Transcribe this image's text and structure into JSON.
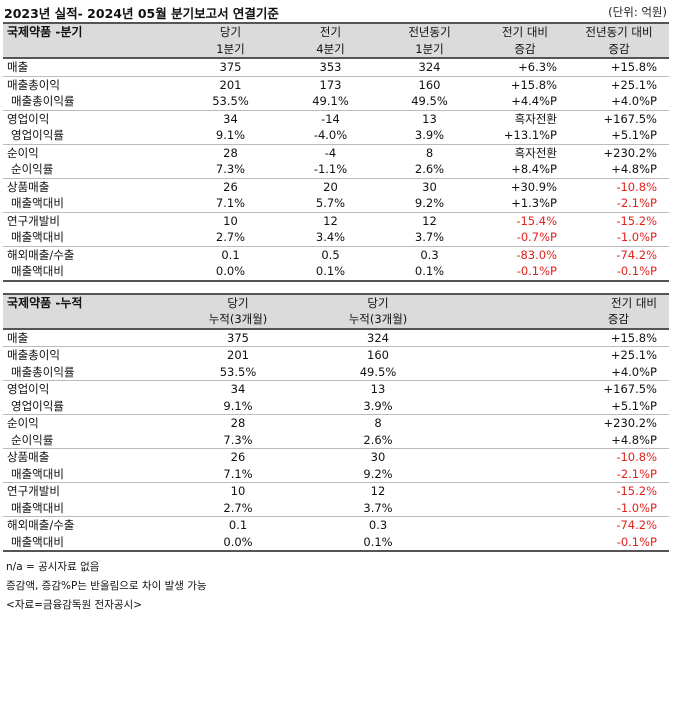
{
  "header": {
    "title": "2023년 실적- 2024년 05월 분기보고서 연결기준",
    "unit": "(단위: 억원)"
  },
  "quarter_table": {
    "label": "국제약품 -분기",
    "col_headers": [
      [
        "당기",
        "1분기"
      ],
      [
        "전기",
        "4분기"
      ],
      [
        "전년동기",
        "1분기"
      ],
      [
        "전기 대비",
        "증감"
      ],
      [
        "전년동기 대비",
        "증감"
      ]
    ],
    "rows": [
      {
        "label": "매출",
        "cells": [
          "375",
          "353",
          "324",
          "+6.3%",
          "+15.8%"
        ]
      },
      {
        "label": "매출총이익",
        "cells": [
          "201",
          "173",
          "160",
          "+15.8%",
          "+25.1%"
        ]
      },
      {
        "label": "매출총이익률",
        "cells": [
          "53.5%",
          "49.1%",
          "49.5%",
          "+4.4%P",
          "+4.0%P"
        ]
      },
      {
        "label": "영업이익",
        "cells": [
          "34",
          "-14",
          "13",
          "흑자전환",
          "+167.5%"
        ]
      },
      {
        "label": "영업이익률",
        "cells": [
          "9.1%",
          "-4.0%",
          "3.9%",
          "+13.1%P",
          "+5.1%P"
        ]
      },
      {
        "label": "순이익",
        "cells": [
          "28",
          "-4",
          "8",
          "흑자전환",
          "+230.2%"
        ]
      },
      {
        "label": "순이익률",
        "cells": [
          "7.3%",
          "-1.1%",
          "2.6%",
          "+8.4%P",
          "+4.8%P"
        ]
      },
      {
        "label": "상품매출",
        "cells": [
          "26",
          "20",
          "30",
          "+30.9%",
          "-10.8%"
        ]
      },
      {
        "label": "매출액대비",
        "cells": [
          "7.1%",
          "5.7%",
          "9.2%",
          "+1.3%P",
          "-2.1%P"
        ]
      },
      {
        "label": "연구개발비",
        "cells": [
          "10",
          "12",
          "12",
          "-15.4%",
          "-15.2%"
        ]
      },
      {
        "label": "매출액대비",
        "cells": [
          "2.7%",
          "3.4%",
          "3.7%",
          "-0.7%P",
          "-1.0%P"
        ]
      },
      {
        "label": "해외매출/수출",
        "cells": [
          "0.1",
          "0.5",
          "0.3",
          "-83.0%",
          "-74.2%"
        ]
      },
      {
        "label": "매출액대비",
        "cells": [
          "0.0%",
          "0.1%",
          "0.1%",
          "-0.1%P",
          "-0.1%P"
        ]
      }
    ]
  },
  "cumulative_table": {
    "label": "국제약품 -누적",
    "col_headers": [
      [
        "당기",
        "누적(3개월)"
      ],
      [
        "당기",
        "누적(3개월)"
      ],
      [
        "전기 대비",
        "증감"
      ]
    ],
    "rows": [
      {
        "label": "매출",
        "cells": [
          "375",
          "324",
          "+15.8%"
        ]
      },
      {
        "label": "매출총이익",
        "cells": [
          "201",
          "160",
          "+25.1%"
        ]
      },
      {
        "label": "매출총이익률",
        "cells": [
          "53.5%",
          "49.5%",
          "+4.0%P"
        ]
      },
      {
        "label": "영업이익",
        "cells": [
          "34",
          "13",
          "+167.5%"
        ]
      },
      {
        "label": "영업이익률",
        "cells": [
          "9.1%",
          "3.9%",
          "+5.1%P"
        ]
      },
      {
        "label": "순이익",
        "cells": [
          "28",
          "8",
          "+230.2%"
        ]
      },
      {
        "label": "순이익률",
        "cells": [
          "7.3%",
          "2.6%",
          "+4.8%P"
        ]
      },
      {
        "label": "상품매출",
        "cells": [
          "26",
          "30",
          "-10.8%"
        ]
      },
      {
        "label": "매출액대비",
        "cells": [
          "7.1%",
          "9.2%",
          "-2.1%P"
        ]
      },
      {
        "label": "연구개발비",
        "cells": [
          "10",
          "12",
          "-15.2%"
        ]
      },
      {
        "label": "매출액대비",
        "cells": [
          "2.7%",
          "3.7%",
          "-1.0%P"
        ]
      },
      {
        "label": "해외매출/수출",
        "cells": [
          "0.1",
          "0.3",
          "-74.2%"
        ]
      },
      {
        "label": "매출액대비",
        "cells": [
          "0.0%",
          "0.1%",
          "-0.1%P"
        ]
      }
    ]
  },
  "notes": [
    "n/a = 공시자료 없음",
    "증감액, 증감%P는 반올림으로 차이 발생 가능",
    "<자료=금융감독원 전자공시>"
  ],
  "colors": {
    "negative": "#e0221c",
    "header_bg": "#dbdbdb"
  }
}
